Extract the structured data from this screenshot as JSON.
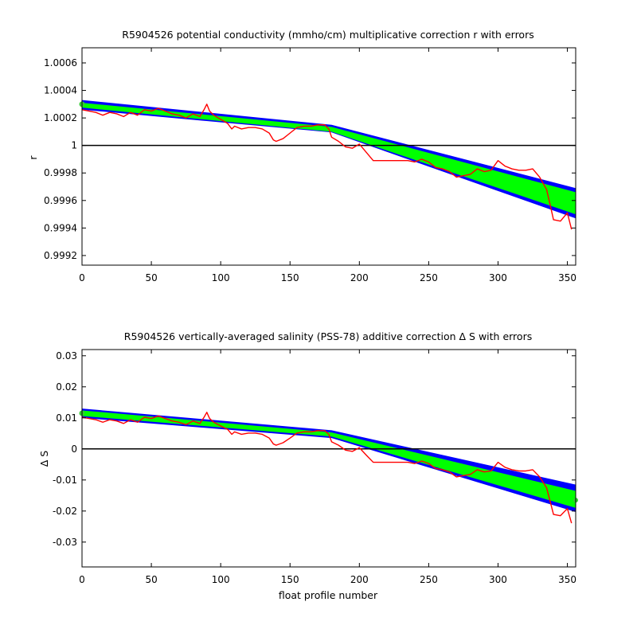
{
  "chart_data": [
    {
      "type": "line",
      "title": "R5904526 potential conductivity (mmho/cm) multiplicative correction r with errors",
      "xlabel": "",
      "ylabel": "r",
      "xlim": [
        0,
        356
      ],
      "ylim": [
        0.99913,
        1.00071
      ],
      "xticks": [
        0,
        50,
        100,
        150,
        200,
        250,
        300,
        350
      ],
      "xtick_labels": [
        "0",
        "50",
        "100",
        "150",
        "200",
        "250",
        "300",
        "350"
      ],
      "yticks": [
        0.9992,
        0.9994,
        0.9996,
        0.9998,
        1.0,
        1.0002,
        1.0004,
        1.0006
      ],
      "ytick_labels": [
        "0.9992",
        "0.9994",
        "0.9996",
        "0.9998",
        "1",
        "1.0002",
        "1.0004",
        "1.0006"
      ],
      "reference_line": 1.0,
      "grid": false,
      "colors": {
        "outer_band": "#0000ff",
        "inner_band": "#00ff00",
        "series": "#ff0000",
        "reference": "#000000",
        "marker": "#33cc33"
      },
      "bands": [
        {
          "color": "#0000ff",
          "x": [
            0,
            180,
            356
          ],
          "upper": [
            1.00033,
            1.00015,
            0.99969
          ],
          "lower": [
            1.00026,
            1.000095,
            0.99947
          ]
        },
        {
          "color": "#00ff00",
          "x": [
            0,
            180,
            356
          ],
          "upper": [
            1.00031,
            1.000135,
            0.99966
          ],
          "lower": [
            1.000275,
            1.0001,
            0.9995
          ]
        }
      ],
      "marker": {
        "x": 0,
        "y": 1.0003
      },
      "series": [
        {
          "x": [
            0,
            5,
            10,
            15,
            20,
            25,
            30,
            35,
            40,
            45,
            50,
            55,
            60,
            65,
            70,
            75,
            80,
            85,
            88,
            90,
            92,
            95,
            100,
            105,
            108,
            110,
            115,
            120,
            125,
            130,
            135,
            138,
            140,
            145,
            150,
            155,
            160,
            165,
            170,
            175,
            178,
            180,
            185,
            190,
            195,
            200,
            205,
            210,
            215,
            220,
            225,
            230,
            235,
            240,
            245,
            250,
            255,
            260,
            265,
            270,
            275,
            280,
            285,
            290,
            295,
            300,
            305,
            310,
            315,
            320,
            325,
            330,
            335,
            338,
            340,
            345,
            350,
            353
          ],
          "y": [
            1.00026,
            1.00025,
            1.00024,
            1.00022,
            1.00024,
            1.00023,
            1.00021,
            1.00024,
            1.00022,
            1.00026,
            1.00025,
            1.00027,
            1.00025,
            1.00023,
            1.00022,
            1.0002,
            1.00023,
            1.00021,
            1.00026,
            1.0003,
            1.00025,
            1.00022,
            1.00019,
            1.00016,
            1.00012,
            1.00014,
            1.00012,
            1.00013,
            1.00013,
            1.00012,
            1.00009,
            1.00004,
            1.00003,
            1.00005,
            1.00009,
            1.00013,
            1.00014,
            1.00014,
            1.00015,
            1.00015,
            1.00012,
            1.00006,
            1.00003,
            0.99999,
            0.99998,
            1.00001,
            0.99995,
            0.99989,
            0.99989,
            0.99989,
            0.99989,
            0.99989,
            0.99989,
            0.99988,
            0.9999,
            0.99988,
            0.99984,
            0.99983,
            0.99981,
            0.99977,
            0.99978,
            0.99979,
            0.99983,
            0.99981,
            0.99982,
            0.99989,
            0.99985,
            0.99983,
            0.99982,
            0.99982,
            0.99983,
            0.99977,
            0.99968,
            0.99955,
            0.99946,
            0.99945,
            0.99951,
            0.99939
          ]
        }
      ]
    },
    {
      "type": "line",
      "title": "R5904526 vertically-averaged salinity (PSS-78) additive correction Δ S with errors",
      "xlabel": "float profile number",
      "ylabel": "Δ S",
      "xlim": [
        0,
        356
      ],
      "ylim": [
        -0.038,
        0.032
      ],
      "xticks": [
        0,
        50,
        100,
        150,
        200,
        250,
        300,
        350
      ],
      "xtick_labels": [
        "0",
        "50",
        "100",
        "150",
        "200",
        "250",
        "300",
        "350"
      ],
      "yticks": [
        -0.03,
        -0.02,
        -0.01,
        0,
        0.01,
        0.02,
        0.03
      ],
      "ytick_labels": [
        "-0.03",
        "-0.02",
        "-0.01",
        "0",
        "0.01",
        "0.02",
        "0.03"
      ],
      "reference_line": 0,
      "grid": false,
      "colors": {
        "outer_band": "#0000ff",
        "inner_band": "#00ff00",
        "series": "#ff0000",
        "reference": "#000000",
        "marker": "#33cc33"
      },
      "bands": [
        {
          "color": "#0000ff",
          "x": [
            0,
            180,
            356
          ],
          "upper": [
            0.013,
            0.006,
            -0.0115
          ],
          "lower": [
            0.01,
            0.0035,
            -0.0203
          ]
        },
        {
          "color": "#00ff00",
          "x": [
            0,
            180,
            356
          ],
          "upper": [
            0.0124,
            0.0053,
            -0.0135
          ],
          "lower": [
            0.0106,
            0.004,
            -0.019
          ]
        }
      ],
      "marker": {
        "x": 0,
        "y": 0.0115
      },
      "marker_end": {
        "x": 356,
        "y": -0.0165
      },
      "series": [
        {
          "x": [
            0,
            5,
            10,
            15,
            20,
            25,
            30,
            35,
            40,
            45,
            50,
            55,
            60,
            65,
            70,
            75,
            80,
            85,
            88,
            90,
            92,
            95,
            100,
            105,
            108,
            110,
            115,
            120,
            125,
            130,
            135,
            138,
            140,
            145,
            150,
            155,
            160,
            165,
            170,
            175,
            178,
            180,
            185,
            190,
            195,
            200,
            205,
            210,
            215,
            220,
            225,
            230,
            235,
            240,
            245,
            250,
            255,
            260,
            265,
            270,
            275,
            280,
            285,
            290,
            295,
            300,
            305,
            310,
            315,
            320,
            325,
            330,
            335,
            338,
            340,
            345,
            350,
            353
          ],
          "y": [
            0.0102,
            0.0098,
            0.0094,
            0.0086,
            0.0094,
            0.009,
            0.0082,
            0.0094,
            0.0086,
            0.0102,
            0.0098,
            0.0106,
            0.0098,
            0.009,
            0.0086,
            0.0078,
            0.009,
            0.0082,
            0.0102,
            0.0118,
            0.0098,
            0.0086,
            0.0074,
            0.0063,
            0.0047,
            0.0055,
            0.0047,
            0.0051,
            0.0051,
            0.0047,
            0.0035,
            0.0016,
            0.0012,
            0.002,
            0.0035,
            0.0051,
            0.0055,
            0.0055,
            0.0059,
            0.0059,
            0.0047,
            0.0023,
            0.0012,
            -0.0004,
            -0.0008,
            0.0004,
            -0.002,
            -0.0043,
            -0.0043,
            -0.0043,
            -0.0043,
            -0.0043,
            -0.0043,
            -0.0047,
            -0.0039,
            -0.0047,
            -0.0063,
            -0.0067,
            -0.0074,
            -0.009,
            -0.0086,
            -0.0082,
            -0.0067,
            -0.0074,
            -0.0071,
            -0.0043,
            -0.0059,
            -0.0067,
            -0.0071,
            -0.0071,
            -0.0067,
            -0.009,
            -0.0125,
            -0.0176,
            -0.0211,
            -0.0215,
            -0.0192,
            -0.0239
          ]
        }
      ]
    }
  ]
}
